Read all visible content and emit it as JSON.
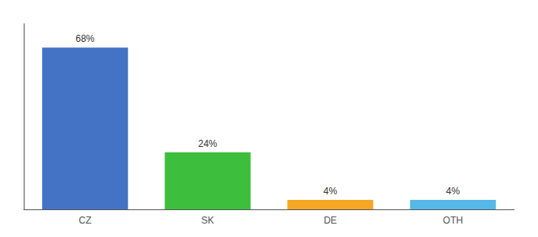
{
  "chart_data": {
    "type": "bar",
    "categories": [
      "CZ",
      "SK",
      "DE",
      "OTH"
    ],
    "values": [
      68,
      24,
      4,
      4
    ],
    "value_labels": [
      "68%",
      "24%",
      "4%",
      "4%"
    ],
    "colors": [
      "#4472c4",
      "#3dbf3d",
      "#f5a623",
      "#56b8e6"
    ],
    "ylim": [
      0,
      78
    ],
    "grid": false,
    "data_labels": true,
    "tick_labels": "x"
  }
}
